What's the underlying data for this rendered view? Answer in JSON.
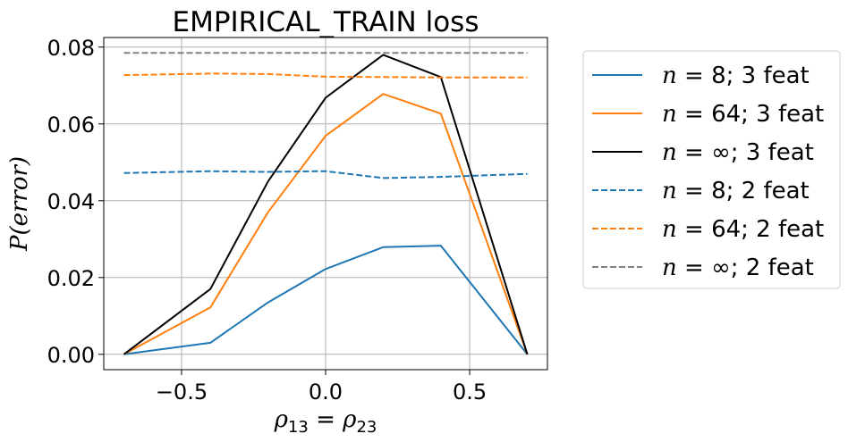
{
  "chart_data": {
    "type": "line",
    "title": "EMPIRICAL_TRAIN loss",
    "xlabel": "ρ13 = ρ23",
    "ylabel": "P(error)",
    "xlim": [
      -0.77,
      0.77
    ],
    "ylim": [
      -0.004,
      0.0825
    ],
    "xticks": [
      -0.5,
      0.0,
      0.5
    ],
    "xtick_labels": [
      "−0.5",
      "0.0",
      "0.5"
    ],
    "yticks": [
      0.0,
      0.02,
      0.04,
      0.06,
      0.08
    ],
    "ytick_labels": [
      "0.00",
      "0.02",
      "0.04",
      "0.06",
      "0.08"
    ],
    "grid": true,
    "legend_position": "outside-right",
    "series": [
      {
        "name": "n = 8; 3 feat",
        "n": "8",
        "feat": "3 feat",
        "color": "#1f77b4",
        "style": "solid",
        "x": [
          -0.7,
          -0.4,
          -0.2,
          0.0,
          0.2,
          0.4,
          0.7
        ],
        "y": [
          0.0,
          0.003,
          0.0135,
          0.0222,
          0.0279,
          0.0283,
          0.0
        ]
      },
      {
        "name": "n = 64; 3 feat",
        "n": "64",
        "feat": "3 feat",
        "color": "#ff7f0e",
        "style": "solid",
        "x": [
          -0.7,
          -0.4,
          -0.2,
          0.0,
          0.2,
          0.4,
          0.7
        ],
        "y": [
          0.0,
          0.0122,
          0.037,
          0.0569,
          0.0678,
          0.0627,
          0.0
        ]
      },
      {
        "name": "n = ∞; 3 feat",
        "n": "∞",
        "feat": "3 feat",
        "color": "#000000",
        "style": "solid",
        "x": [
          -0.7,
          -0.4,
          -0.2,
          0.0,
          0.2,
          0.4,
          0.7
        ],
        "y": [
          0.0,
          0.017,
          0.045,
          0.0668,
          0.078,
          0.0722,
          0.0
        ]
      },
      {
        "name": "n = 8; 2 feat",
        "n": "8",
        "feat": "2 feat",
        "color": "#1f77b4",
        "style": "dashed",
        "x": [
          -0.7,
          -0.4,
          -0.2,
          0.0,
          0.2,
          0.4,
          0.7
        ],
        "y": [
          0.0472,
          0.0477,
          0.0475,
          0.0477,
          0.0459,
          0.0462,
          0.047
        ]
      },
      {
        "name": "n = 64; 2 feat",
        "n": "64",
        "feat": "2 feat",
        "color": "#ff7f0e",
        "style": "dashed",
        "x": [
          -0.7,
          -0.4,
          -0.2,
          0.0,
          0.2,
          0.4,
          0.7
        ],
        "y": [
          0.0727,
          0.0731,
          0.073,
          0.0723,
          0.0722,
          0.0721,
          0.0721
        ]
      },
      {
        "name": "n = ∞; 2 feat",
        "n": "∞",
        "feat": "2 feat",
        "color": "#808080",
        "style": "dashed",
        "x": [
          -0.7,
          -0.4,
          -0.2,
          0.0,
          0.2,
          0.4,
          0.7
        ],
        "y": [
          0.0785,
          0.0785,
          0.0785,
          0.0785,
          0.0785,
          0.0785,
          0.0785
        ]
      }
    ]
  }
}
